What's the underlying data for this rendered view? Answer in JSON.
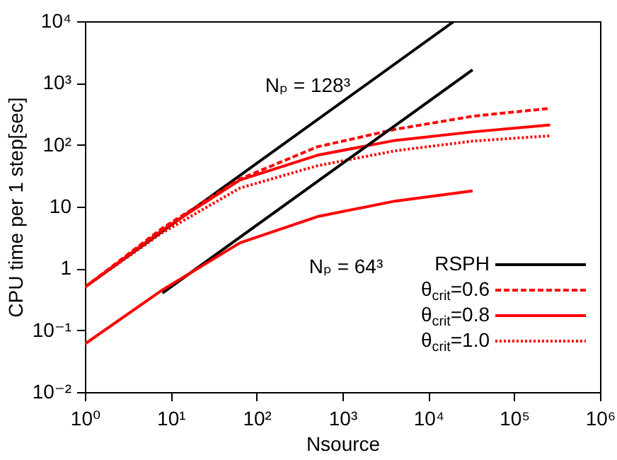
{
  "chart_data": {
    "type": "line",
    "xlabel": "Nsource",
    "ylabel": "CPU time per 1 step[sec]",
    "log": "xy",
    "grid": false,
    "legend": "bottom right",
    "marker": "none",
    "xlim": [
      1,
      1000000
    ],
    "ylim": [
      0.01,
      10000
    ],
    "xticks": [
      {
        "value": 1,
        "label": "10⁰"
      },
      {
        "value": 10,
        "label": "10¹"
      },
      {
        "value": 100,
        "label": "10²"
      },
      {
        "value": 1000,
        "label": "10³"
      },
      {
        "value": 10000,
        "label": "10⁴"
      },
      {
        "value": 100000,
        "label": "10⁵"
      },
      {
        "value": 1000000,
        "label": "10⁶"
      }
    ],
    "yticks": [
      {
        "value": 0.01,
        "label": "10⁻²"
      },
      {
        "value": 0.1,
        "label": "10⁻¹"
      },
      1,
      10,
      {
        "value": 100,
        "label": "10²"
      },
      {
        "value": 1000,
        "label": "10³"
      },
      {
        "value": 10000,
        "label": "10⁴"
      }
    ],
    "annotations": [
      "Nₚ = 128³",
      "Nₚ = 64³"
    ],
    "series": [
      {
        "name": "RSPH",
        "color": "#000000",
        "line_style": "solid",
        "x": [
          1,
          20000
        ],
        "values": [
          0.5,
          10000
        ]
      },
      {
        "name": "θ$_{crit}$=0.6",
        "color": "#ff0000",
        "line_style": "dashed",
        "x": [
          1,
          8,
          64,
          512,
          4096,
          32768,
          262144
        ],
        "values": [
          0.5,
          4.5,
          28,
          93,
          178,
          290,
          390
        ]
      },
      {
        "name": "θ$_{crit}$=0.8",
        "color": "#ff0000",
        "line_style": "solid",
        "x": [
          1,
          8,
          64,
          512,
          4096,
          32768,
          262144
        ],
        "values": [
          0.5,
          4.2,
          27,
          68,
          118,
          162,
          210
        ]
      },
      {
        "name": "θ$_{crit}$=1.0",
        "color": "#ff0000",
        "line_style": "dotted",
        "x": [
          1,
          8,
          64,
          512,
          4096,
          32768,
          262144
        ],
        "values": [
          0.5,
          3.8,
          20,
          46,
          80,
          115,
          140
        ]
      },
      {
        "color": "#000000",
        "line_style": "solid",
        "x": [
          8,
          32768
        ],
        "values": [
          0.4,
          1638
        ]
      },
      {
        "color": "#ff0000",
        "line_style": "solid",
        "x": [
          1,
          8,
          64,
          512,
          4096,
          32768
        ],
        "values": [
          0.06,
          0.45,
          2.6,
          6.9,
          12.3,
          18
        ]
      }
    ]
  }
}
